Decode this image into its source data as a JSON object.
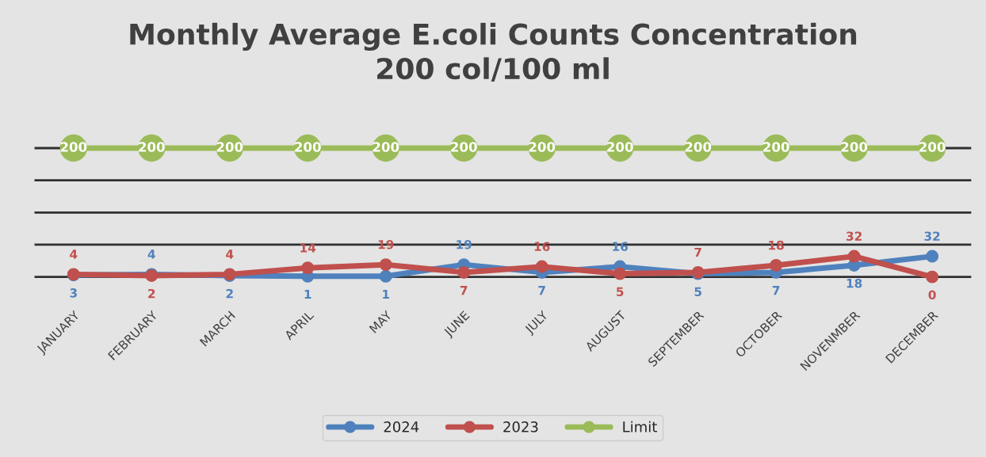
{
  "chart_data": {
    "type": "line",
    "title": "Monthly Average E.coli Counts Concentration\n200 col/100 ml",
    "categories": [
      "JANUARY",
      "FEBRUARY",
      "MARCH",
      "APRIL",
      "MAY",
      "JUNE",
      "JULY",
      "AUGUST",
      "SEPTEMBER",
      "OCTOBER",
      "NOVENMBER",
      "DECEMBER"
    ],
    "series": [
      {
        "name": "2024",
        "color": "#4f81bd",
        "values": [
          3,
          4,
          2,
          1,
          1,
          19,
          7,
          16,
          5,
          7,
          18,
          32
        ]
      },
      {
        "name": "2023",
        "color": "#c0504d",
        "values": [
          4,
          2,
          4,
          14,
          19,
          7,
          16,
          5,
          7,
          18,
          32,
          0
        ]
      },
      {
        "name": "Limit",
        "color": "#9bbb59",
        "values": [
          200,
          200,
          200,
          200,
          200,
          200,
          200,
          200,
          200,
          200,
          200,
          200
        ]
      }
    ],
    "tick_labels": "x",
    "grid": "y",
    "legend": "bottom",
    "marker": "circle",
    "line_style": "solid",
    "data_labels": true
  }
}
